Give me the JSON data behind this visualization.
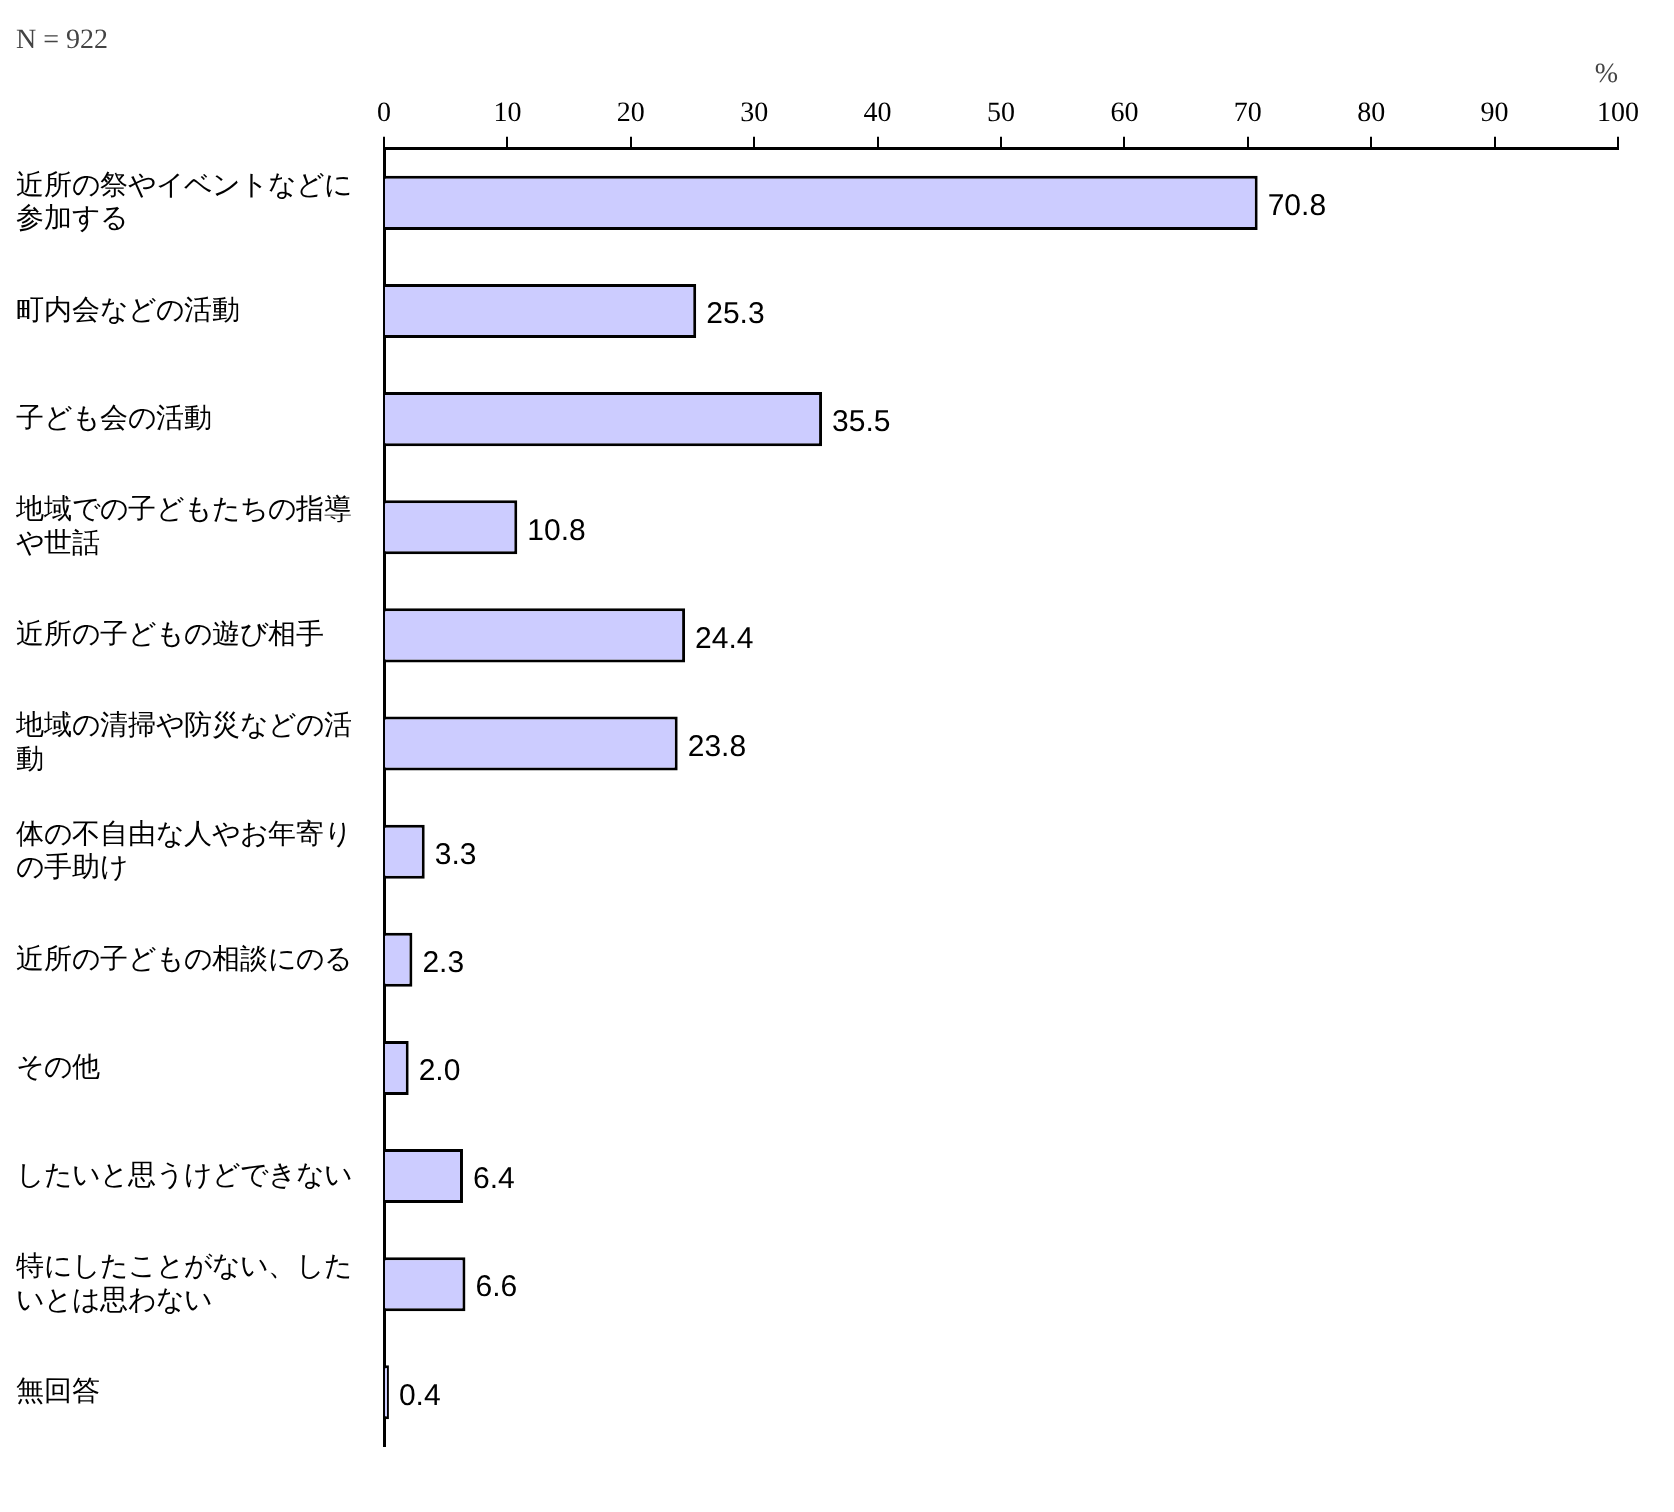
{
  "chart_data": {
    "type": "bar",
    "orientation": "horizontal",
    "title": "N = 922",
    "xlabel": "%",
    "categories": [
      "近所の祭やイベントなどに参加する",
      "町内会などの活動",
      "子ども会の活動",
      "地域での子どもたちの指導や世話",
      "近所の子どもの遊び相手",
      "地域の清掃や防災などの活動",
      "体の不自由な人やお年寄りの手助け",
      "近所の子どもの相談にのる",
      "その他",
      "したいと思うけどできない",
      "特にしたことがない、したいとは思わない",
      "無回答"
    ],
    "values": [
      70.8,
      25.3,
      35.5,
      10.8,
      24.4,
      23.8,
      3.3,
      2.3,
      2.0,
      6.4,
      6.6,
      0.4
    ],
    "color": "#ccccff",
    "xlim": [
      0,
      100
    ],
    "xticks": [
      0,
      10,
      20,
      30,
      40,
      50,
      60,
      70,
      80,
      90,
      100
    ],
    "value_labels": [
      "70.8",
      "25.3",
      "35.5",
      "10.8",
      "24.4",
      "23.8",
      "3.3",
      "2.3",
      "2.0",
      "6.4",
      "6.6",
      "0.4"
    ],
    "grid": false,
    "legend": false
  }
}
